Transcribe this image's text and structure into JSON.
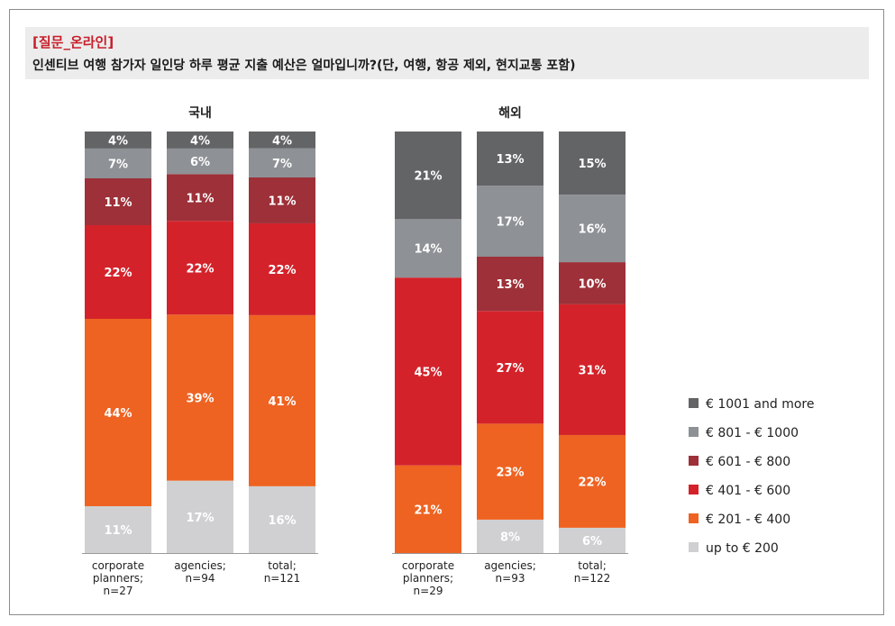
{
  "header": {
    "tag": "[질문_온라인]",
    "question": "인센티브 여행 참가자 일인당 하루 평균 지출 예산은 얼마입니까?(단, 여행, 항공 제외, 현지교통 포함)"
  },
  "colors": {
    "up_to_200": "#d0d0d2",
    "201_400": "#ee6322",
    "401_600": "#d4222a",
    "601_800": "#9d3038",
    "801_1000": "#8e9195",
    "1001_more": "#636466"
  },
  "chart_data": [
    {
      "type": "bar",
      "stacked": true,
      "title": "국내",
      "categories": [
        "corporate planners; n=27",
        "agencies; n=94",
        "total; n=121"
      ],
      "category_lines": [
        [
          "corporate",
          "planners;",
          "n=27"
        ],
        [
          "agencies;",
          "n=94"
        ],
        [
          "total;",
          "n=121"
        ]
      ],
      "series": [
        {
          "name": "up to € 200",
          "values": [
            11,
            17,
            16
          ]
        },
        {
          "name": "€ 201 - € 400",
          "values": [
            44,
            39,
            41
          ]
        },
        {
          "name": "€ 401 - € 600",
          "values": [
            22,
            22,
            22
          ]
        },
        {
          "name": "€ 601 - € 800",
          "values": [
            11,
            11,
            11
          ]
        },
        {
          "name": "€ 801 - € 1000",
          "values": [
            7,
            6,
            7
          ]
        },
        {
          "name": "€ 1001 and more",
          "values": [
            4,
            4,
            4
          ]
        }
      ],
      "labels": [
        [
          "11%",
          "17%",
          "16%"
        ],
        [
          "44%",
          "39%",
          "41%"
        ],
        [
          "22%",
          "22%",
          "22%"
        ],
        [
          "11%",
          "11%",
          "11%"
        ],
        [
          "7%",
          "6%",
          "7%"
        ],
        [
          "4%",
          "4%",
          "4%"
        ]
      ],
      "ylim": [
        0,
        100
      ]
    },
    {
      "type": "bar",
      "stacked": true,
      "title": "해외",
      "categories": [
        "corporate planners; n=29",
        "agencies; n=93",
        "total; n=122"
      ],
      "category_lines": [
        [
          "corporate",
          "planners;",
          "n=29"
        ],
        [
          "agencies;",
          "n=93"
        ],
        [
          "total;",
          "n=122"
        ]
      ],
      "series": [
        {
          "name": "up to € 200",
          "values": [
            0,
            8,
            6
          ]
        },
        {
          "name": "€ 201 - € 400",
          "values": [
            21,
            23,
            22
          ]
        },
        {
          "name": "€ 401 - € 600",
          "values": [
            45,
            27,
            31
          ]
        },
        {
          "name": "€ 601 - € 800",
          "values": [
            0,
            13,
            10
          ]
        },
        {
          "name": "€ 801 - € 1000",
          "values": [
            14,
            17,
            16
          ]
        },
        {
          "name": "€ 1001 and more",
          "values": [
            21,
            13,
            15
          ]
        }
      ],
      "labels": [
        [
          "",
          "8%",
          "6%"
        ],
        [
          "21%",
          "23%",
          "22%"
        ],
        [
          "45%",
          "27%",
          "31%"
        ],
        [
          "",
          "13%",
          "10%"
        ],
        [
          "14%",
          "17%",
          "16%"
        ],
        [
          "21%",
          "13%",
          "15%"
        ]
      ],
      "ylim": [
        0,
        100
      ]
    }
  ],
  "legend": {
    "placement": "right",
    "items": [
      {
        "label": "€ 1001 and more",
        "color": "#636466"
      },
      {
        "label": "€ 801 - € 1000",
        "color": "#8e9195"
      },
      {
        "label": "€ 601 - € 800",
        "color": "#9d3038"
      },
      {
        "label": "€ 401 - € 600",
        "color": "#d4222a"
      },
      {
        "label": "€ 201 - € 400",
        "color": "#ee6322"
      },
      {
        "label": "up to € 200",
        "color": "#d0d0d2"
      }
    ]
  }
}
